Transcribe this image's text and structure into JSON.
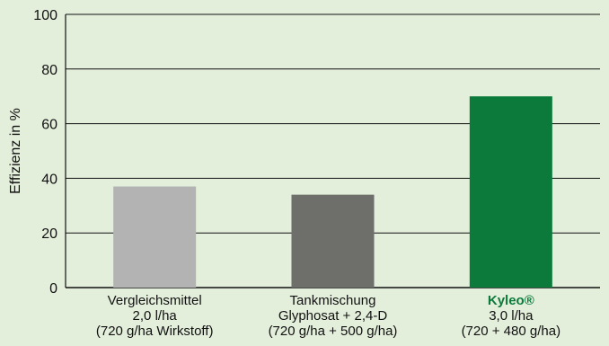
{
  "chart_data": {
    "type": "bar",
    "ylabel": "Effizienz in %",
    "ylim": [
      0,
      100
    ],
    "yticks": [
      0,
      20,
      40,
      60,
      80,
      100
    ],
    "grid": true,
    "categories": [
      {
        "label_lines": [
          "Vergleichsmittel",
          "2,0 l/ha",
          "(720 g/ha Wirkstoff)"
        ],
        "value": 37,
        "color": "#b2b3b2",
        "highlight": false
      },
      {
        "label_lines": [
          "Tankmischung",
          "Glyphosat + 2,4-D",
          "(720 g/ha + 500 g/ha)"
        ],
        "value": 34,
        "color": "#6e6e6b",
        "highlight": false
      },
      {
        "label_lines": [
          "Kyleo®",
          "3,0 l/ha",
          "(720 + 480 g/ha)"
        ],
        "value": 70,
        "color": "#0b7a3b",
        "highlight": true
      }
    ]
  }
}
